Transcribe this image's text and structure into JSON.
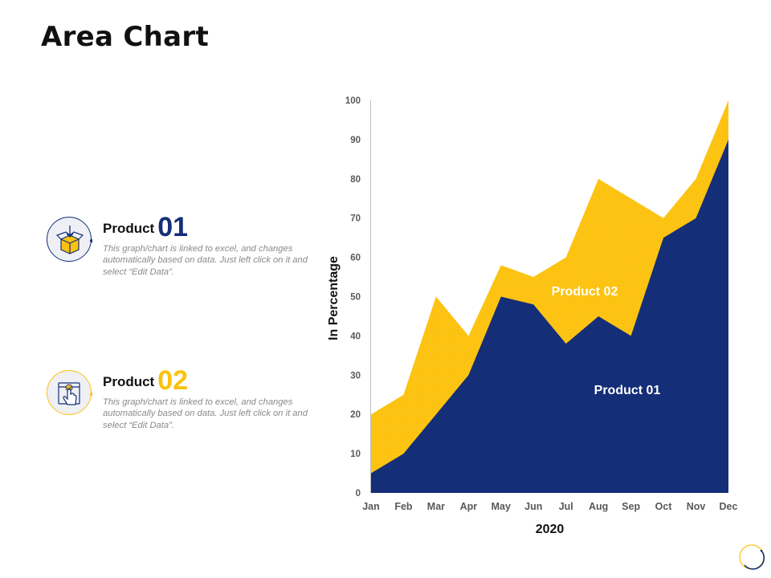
{
  "page": {
    "title": "Area Chart"
  },
  "products": [
    {
      "name": "Product",
      "number": "01",
      "number_color": "#142E78",
      "description": "This graph/chart is linked to excel, and changes automatically based on data. Just left click on it and select “Edit Data”.",
      "icon": "box-with-download-arrow-icon"
    },
    {
      "name": "Product",
      "number": "02",
      "number_color": "#FCC20E",
      "description": "This graph/chart is linked to excel, and changes automatically based on data. Just left click on it and select “Edit Data”.",
      "icon": "hand-click-package-icon"
    }
  ],
  "colors": {
    "product_01": "#142E78",
    "product_02": "#FCC20E",
    "axis_text": "#595959",
    "axis_line": "#BFBFBF"
  },
  "chart_data": {
    "type": "area",
    "title": "",
    "xlabel": "2020",
    "ylabel": "In Percentage",
    "categories": [
      "Jan",
      "Feb",
      "Mar",
      "Apr",
      "May",
      "Jun",
      "Jul",
      "Aug",
      "Sep",
      "Oct",
      "Nov",
      "Dec"
    ],
    "yticks": [
      0,
      10,
      20,
      30,
      40,
      50,
      60,
      70,
      80,
      90,
      100
    ],
    "ylim": [
      0,
      100
    ],
    "grid": false,
    "legend": "none",
    "series": [
      {
        "name": "Product 02",
        "color": "#FCC20E",
        "values": [
          20,
          25,
          50,
          40,
          58,
          55,
          60,
          80,
          75,
          70,
          80,
          100
        ],
        "label": "Product 02"
      },
      {
        "name": "Product 01",
        "color": "#142E78",
        "values": [
          5,
          10,
          20,
          30,
          50,
          48,
          38,
          45,
          40,
          65,
          70,
          90
        ],
        "label": "Product 01"
      }
    ]
  }
}
